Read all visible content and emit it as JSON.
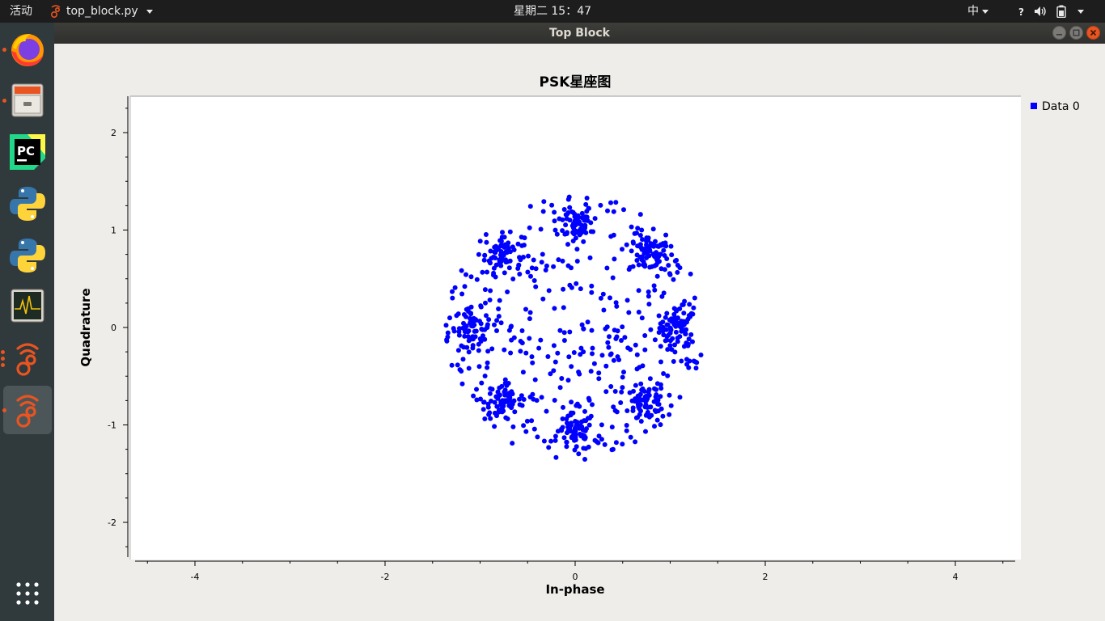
{
  "topbar": {
    "activities": "活动",
    "app_name": "top_block.py",
    "clock": "星期二 15：47",
    "ime": "中",
    "tray_icons": [
      "help-icon",
      "volume-icon",
      "battery-icon",
      "power-icon"
    ]
  },
  "dock": {
    "items": [
      {
        "name": "firefox",
        "running": true
      },
      {
        "name": "files",
        "running": true
      },
      {
        "name": "pycharm",
        "running": false
      },
      {
        "name": "python",
        "running": false
      },
      {
        "name": "python",
        "running": false
      },
      {
        "name": "system-monitor",
        "running": false
      },
      {
        "name": "gnuradio",
        "running": true
      },
      {
        "name": "gnuradio",
        "running": true,
        "active": true
      }
    ],
    "apps_grid": "show-applications-icon"
  },
  "window": {
    "title": "Top Block"
  },
  "chart_data": {
    "type": "scatter",
    "title": "PSK星座图",
    "xlabel": "In-phase",
    "ylabel": "Quadrature",
    "xlim": [
      -4.65,
      4.65
    ],
    "ylim": [
      -2.38,
      2.38
    ],
    "xticks": [
      -4,
      -2,
      0,
      2,
      4
    ],
    "yticks": [
      -2,
      -1,
      0,
      1,
      2
    ],
    "legend": {
      "placement": "right-top",
      "entries": [
        "Data 0"
      ]
    },
    "grid": false,
    "color": "#0000ff",
    "series": [
      {
        "name": "Data 0",
        "constellation": "8PSK",
        "symbol_radius": 1.08,
        "noise_std": 0.12,
        "cluster_centers": [
          [
            1.08,
            0
          ],
          [
            0.76,
            0.76
          ],
          [
            0,
            1.08
          ],
          [
            -0.76,
            0.76
          ],
          [
            -1.08,
            0
          ],
          [
            -0.76,
            -0.76
          ],
          [
            0,
            -1.08
          ],
          [
            0.76,
            -0.76
          ]
        ]
      }
    ]
  }
}
